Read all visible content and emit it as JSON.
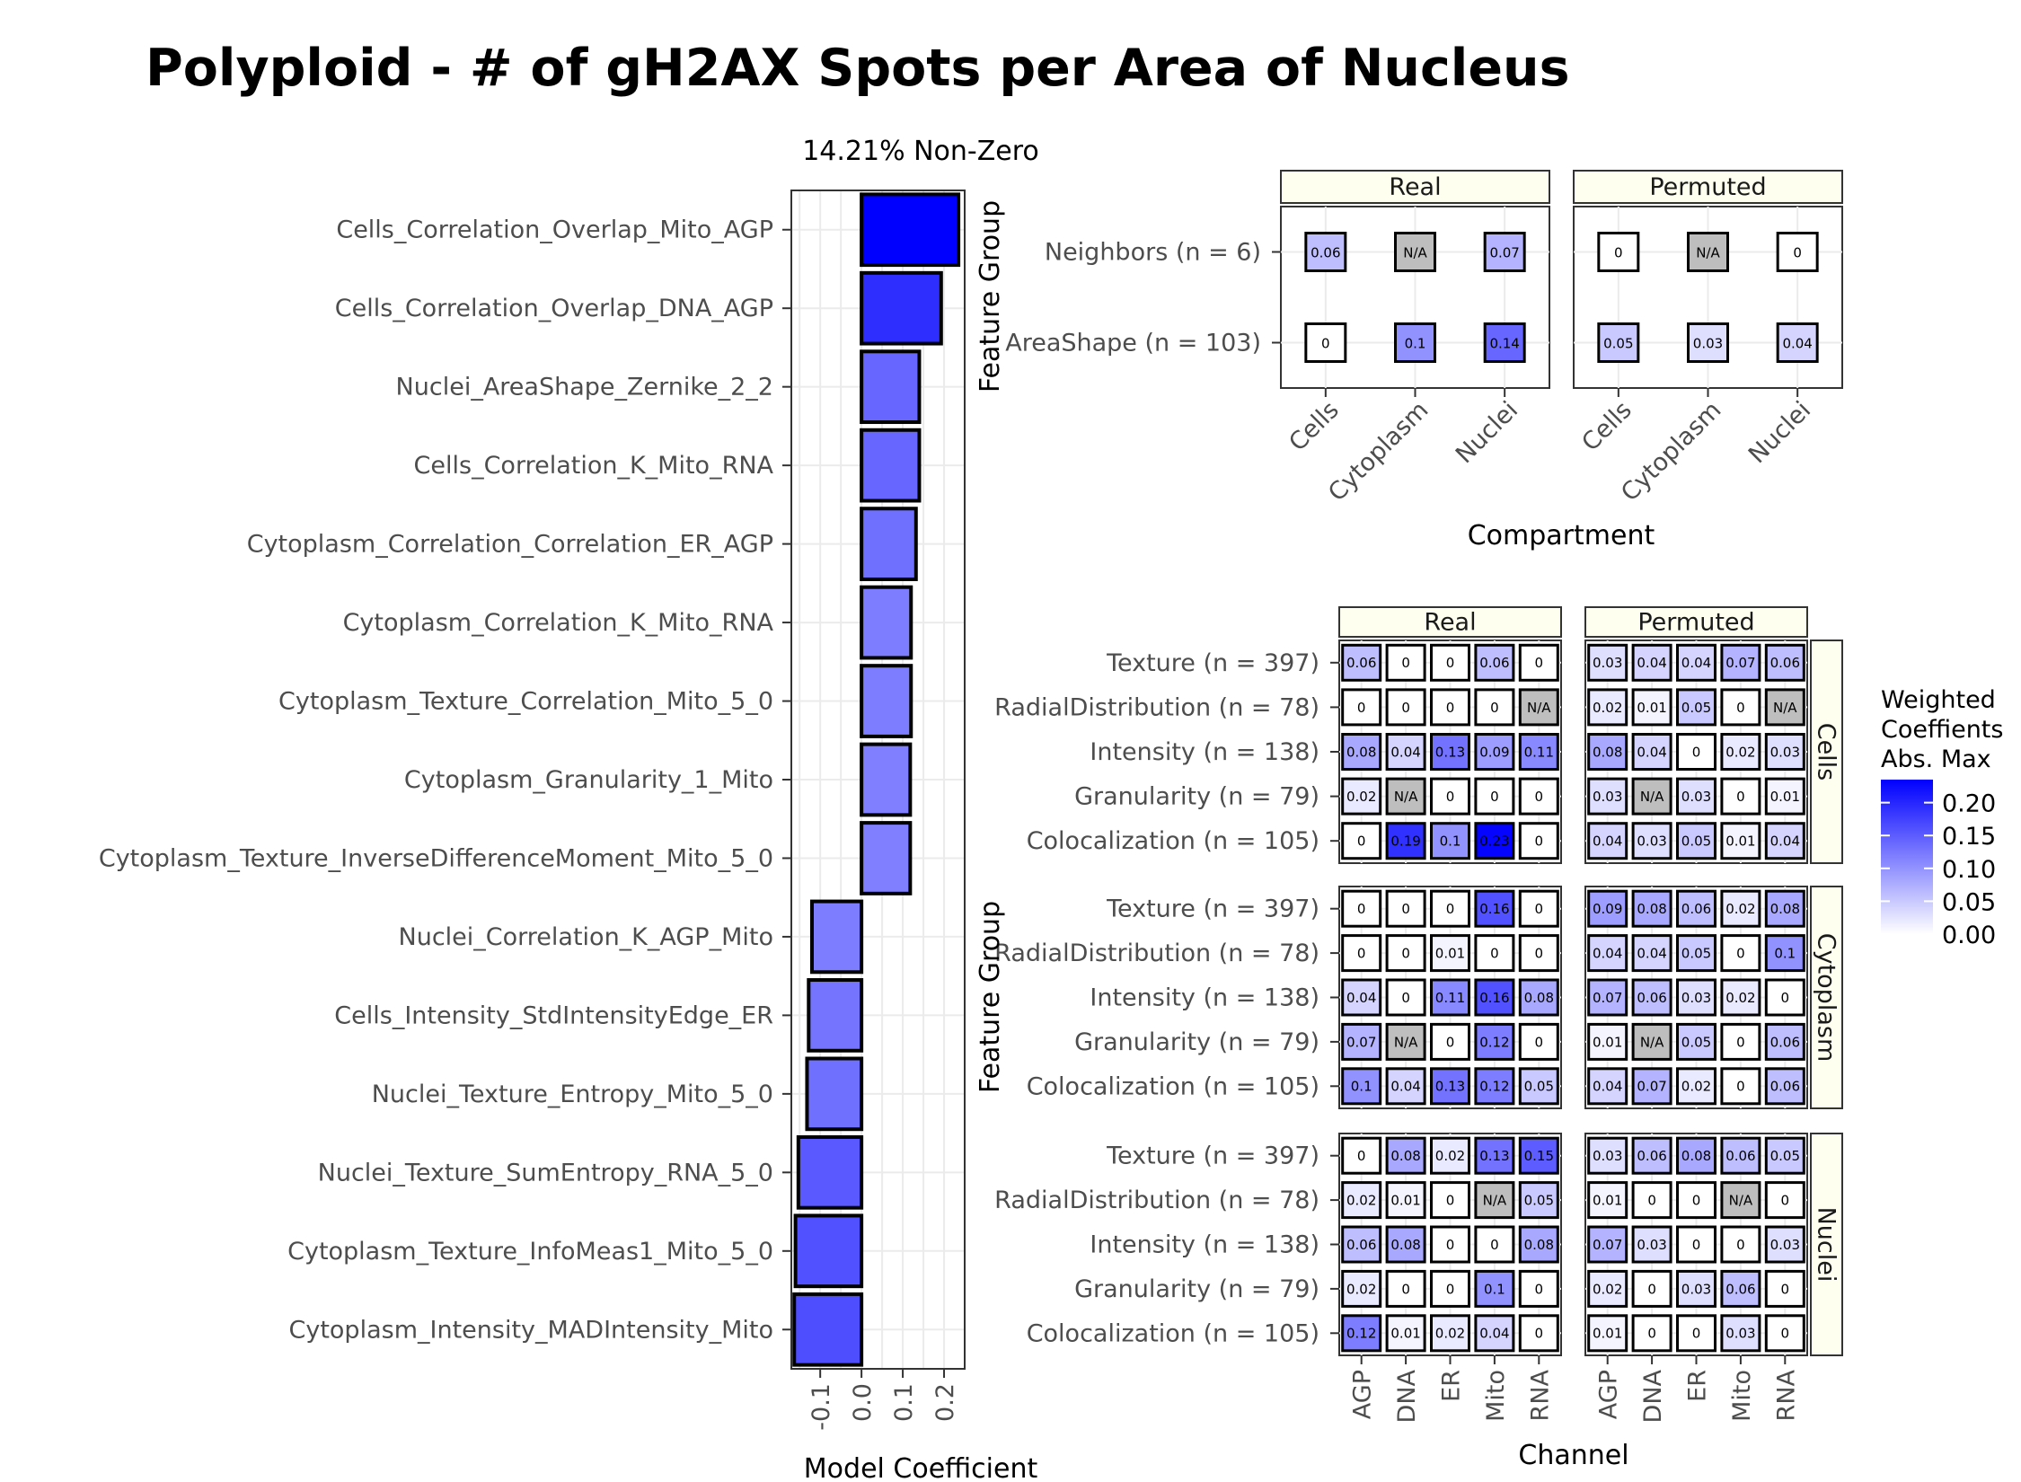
{
  "title": "Polyploid - # of gH2AX Spots per Area of Nucleus",
  "chart_data": [
    {
      "type": "bar",
      "subtitle": "14.21% Non-Zero",
      "xlabel": "Model Coefficient",
      "ylabel": "",
      "xlim": [
        -0.17,
        0.25
      ],
      "xticks": [
        "-0.1",
        "0.0",
        "0.1",
        "0.2"
      ],
      "xtick_values": [
        -0.1,
        0.0,
        0.1,
        0.2
      ],
      "categories": [
        "Cells_Correlation_Overlap_Mito_AGP",
        "Cells_Correlation_Overlap_DNA_AGP",
        "Nuclei_AreaShape_Zernike_2_2",
        "Cells_Correlation_K_Mito_RNA",
        "Cytoplasm_Correlation_Correlation_ER_AGP",
        "Cytoplasm_Correlation_K_Mito_RNA",
        "Cytoplasm_Texture_Correlation_Mito_5_0",
        "Cytoplasm_Granularity_1_Mito",
        "Cytoplasm_Texture_InverseDifferenceMoment_Mito_5_0",
        "Nuclei_Correlation_K_AGP_Mito",
        "Cells_Intensity_StdIntensityEdge_ER",
        "Nuclei_Texture_Entropy_Mito_5_0",
        "Nuclei_Texture_SumEntropy_RNA_5_0",
        "Cytoplasm_Texture_InfoMeas1_Mito_5_0",
        "Cytoplasm_Intensity_MADIntensity_Mito"
      ],
      "values": [
        0.235,
        0.193,
        0.14,
        0.14,
        0.132,
        0.12,
        0.12,
        0.118,
        0.118,
        -0.12,
        -0.128,
        -0.132,
        -0.153,
        -0.16,
        -0.163
      ]
    },
    {
      "type": "heatmap",
      "ylabel": "Feature Group",
      "xlabel": "Compartment",
      "panels": [
        "Real",
        "Permuted"
      ],
      "x": [
        "Cells",
        "Cytoplasm",
        "Nuclei"
      ],
      "y": [
        "Neighbors (n = 6)",
        "AreaShape (n = 103)"
      ],
      "cells": {
        "Real": [
          [
            "0.06",
            "N/A",
            "0.07"
          ],
          [
            "0",
            "0.1",
            "0.14"
          ]
        ],
        "Permuted": [
          [
            "0",
            "N/A",
            "0"
          ],
          [
            "0.05",
            "0.03",
            "0.04"
          ]
        ]
      }
    },
    {
      "type": "heatmap",
      "ylabel": "Feature Group",
      "xlabel": "Channel",
      "columns_panels": [
        "Real",
        "Permuted"
      ],
      "row_panels": [
        "Cells",
        "Cytoplasm",
        "Nuclei"
      ],
      "x": [
        "AGP",
        "DNA",
        "ER",
        "Mito",
        "RNA"
      ],
      "y": [
        "Texture (n = 397)",
        "RadialDistribution (n = 78)",
        "Intensity (n = 138)",
        "Granularity (n = 79)",
        "Colocalization (n = 105)"
      ],
      "cells": {
        "Cells": {
          "Real": [
            [
              "0.06",
              "0",
              "0",
              "0.06",
              "0"
            ],
            [
              "0",
              "0",
              "0",
              "0",
              "N/A"
            ],
            [
              "0.08",
              "0.04",
              "0.13",
              "0.09",
              "0.11"
            ],
            [
              "0.02",
              "N/A",
              "0",
              "0",
              "0"
            ],
            [
              "0",
              "0.19",
              "0.1",
              "0.23",
              "0"
            ]
          ],
          "Permuted": [
            [
              "0.03",
              "0.04",
              "0.04",
              "0.07",
              "0.06"
            ],
            [
              "0.02",
              "0.01",
              "0.05",
              "0",
              "N/A"
            ],
            [
              "0.08",
              "0.04",
              "0",
              "0.02",
              "0.03"
            ],
            [
              "0.03",
              "N/A",
              "0.03",
              "0",
              "0.01"
            ],
            [
              "0.04",
              "0.03",
              "0.05",
              "0.01",
              "0.04"
            ]
          ]
        },
        "Cytoplasm": {
          "Real": [
            [
              "0",
              "0",
              "0",
              "0.16",
              "0"
            ],
            [
              "0",
              "0",
              "0.01",
              "0",
              "0"
            ],
            [
              "0.04",
              "0",
              "0.11",
              "0.16",
              "0.08"
            ],
            [
              "0.07",
              "N/A",
              "0",
              "0.12",
              "0"
            ],
            [
              "0.1",
              "0.04",
              "0.13",
              "0.12",
              "0.05"
            ]
          ],
          "Permuted": [
            [
              "0.09",
              "0.08",
              "0.06",
              "0.02",
              "0.08"
            ],
            [
              "0.04",
              "0.04",
              "0.05",
              "0",
              "0.1"
            ],
            [
              "0.07",
              "0.06",
              "0.03",
              "0.02",
              "0"
            ],
            [
              "0.01",
              "N/A",
              "0.05",
              "0",
              "0.06"
            ],
            [
              "0.04",
              "0.07",
              "0.02",
              "0",
              "0.06"
            ]
          ]
        },
        "Nuclei": {
          "Real": [
            [
              "0",
              "0.08",
              "0.02",
              "0.13",
              "0.15"
            ],
            [
              "0.02",
              "0.01",
              "0",
              "N/A",
              "0.05"
            ],
            [
              "0.06",
              "0.08",
              "0",
              "0",
              "0.08"
            ],
            [
              "0.02",
              "0",
              "0",
              "0.1",
              "0"
            ],
            [
              "0.12",
              "0.01",
              "0.02",
              "0.04",
              "0"
            ]
          ],
          "Permuted": [
            [
              "0.03",
              "0.06",
              "0.08",
              "0.06",
              "0.05"
            ],
            [
              "0.01",
              "0",
              "0",
              "N/A",
              "0"
            ],
            [
              "0.07",
              "0.03",
              "0",
              "0",
              "0.03"
            ],
            [
              "0.02",
              "0",
              "0.03",
              "0.06",
              "0"
            ],
            [
              "0.01",
              "0",
              "0",
              "0.03",
              "0"
            ]
          ]
        }
      }
    }
  ],
  "legend": {
    "title_lines": [
      "Weighted",
      "Coeffients",
      "Abs. Max"
    ],
    "ticks": [
      "0.20",
      "0.15",
      "0.10",
      "0.05",
      "0.00"
    ],
    "tick_values": [
      0.2,
      0.15,
      0.1,
      0.05,
      0.0
    ],
    "range": [
      0,
      0.235
    ],
    "low_color": "#ffffff",
    "high_color": "#0000ff",
    "na_color": "#bebebe"
  }
}
